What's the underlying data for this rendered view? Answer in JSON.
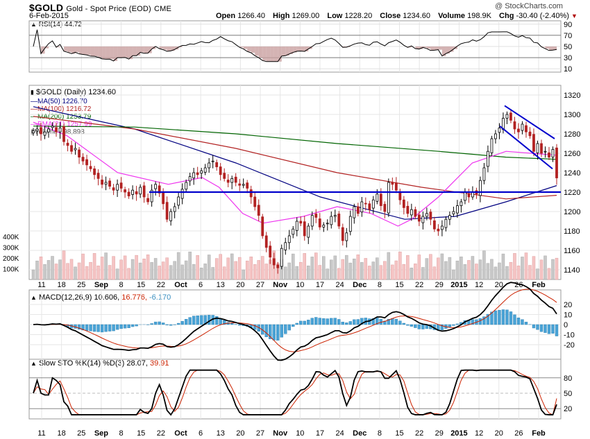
{
  "header": {
    "symbol": "$GOLD",
    "name": "Gold - Spot Price (EOD)",
    "exchange": "CME",
    "date": "6-Feb-2015",
    "copyright": "@ StockCharts.com",
    "open_label": "Open",
    "open": "1266.40",
    "high_label": "High",
    "high": "1269.00",
    "low_label": "Low",
    "low": "1228.20",
    "close_label": "Close",
    "close": "1234.60",
    "volume_label": "Volume",
    "volume": "198.9K",
    "chg_label": "Chg",
    "chg": "-30.40 (-2.40%)",
    "chg_arrow": "▼"
  },
  "colors": {
    "ma50": "#000080",
    "ma100": "#b22222",
    "ma200": "#006400",
    "ema21": "#ee33ee",
    "up_candle": "#000000",
    "down_candle": "#b22222",
    "vol_up": "#c8c8c8",
    "vol_down": "#f5c4c4",
    "macd_hist": "#4aa3d6",
    "macd_line": "#000000",
    "macd_signal": "#cc2200",
    "sto_k": "#000000",
    "sto_d": "#cc2200",
    "trendline": "#0000cc"
  },
  "rsi_panel": {
    "label": "RSI(14) 44.72",
    "levels": [
      90,
      70,
      50,
      30,
      10
    ]
  },
  "price_panel": {
    "title": "$GOLD (Daily) 1234.60",
    "legend": [
      {
        "text": "MA(50) 1226.70",
        "color": "#000080"
      },
      {
        "text": "MA(100) 1216.72",
        "color": "#b22222"
      },
      {
        "text": "MA(200) 1253.79",
        "color": "#006400"
      },
      {
        "text": "EMA(21) 1257.99",
        "color": "#ee33ee"
      },
      {
        "text": "Volume 198,898",
        "color": "#888888"
      }
    ],
    "y_ticks": [
      1320,
      1300,
      1280,
      1260,
      1240,
      1220,
      1200,
      1180,
      1160,
      1140
    ],
    "volume_ticks": [
      "400K",
      "300K",
      "200K",
      "100K"
    ]
  },
  "macd_panel": {
    "label_name": "MACD(12,26,9)",
    "macd": "10.606,",
    "signal": "16.776,",
    "hist": "-6.170",
    "y_ticks": [
      20,
      10,
      0,
      -10,
      -20
    ]
  },
  "sto_panel": {
    "label_name": "Slow STO %K(14) %D(3)",
    "k": "28.07,",
    "d": "39.91",
    "y_ticks": [
      80,
      50,
      20
    ]
  },
  "x_axis": {
    "labels": [
      "11",
      "18",
      "25",
      "Sep",
      "8",
      "15",
      "22",
      "Oct",
      "6",
      "13",
      "20",
      "27",
      "Nov",
      "10",
      "17",
      "24",
      "Dec",
      "8",
      "15",
      "22",
      "29",
      "2015",
      "12",
      "20",
      "26",
      "Feb"
    ],
    "bold": [
      "Sep",
      "Oct",
      "Nov",
      "Dec",
      "2015",
      "Feb"
    ]
  },
  "chart_data": {
    "type": "line",
    "title": "$GOLD (Daily) 1234.60",
    "period": "mid-Aug 2014 to 6-Feb-2015, daily candlesticks with moving averages, volume, RSI, MACD and Slow Stochastic panels",
    "ylim": [
      1130,
      1330
    ],
    "close": [
      1283,
      1285,
      1280,
      1282,
      1285,
      1288,
      1282,
      1286,
      1272,
      1268,
      1262,
      1265,
      1256,
      1252,
      1248,
      1244,
      1238,
      1234,
      1228,
      1230,
      1226,
      1222,
      1228,
      1224,
      1220,
      1216,
      1222,
      1218,
      1225,
      1215,
      1210,
      1222,
      1228,
      1219,
      1208,
      1192,
      1200,
      1205,
      1215,
      1223,
      1230,
      1236,
      1240,
      1238,
      1242,
      1245,
      1250,
      1252,
      1246,
      1238,
      1234,
      1230,
      1234,
      1230,
      1227,
      1228,
      1224,
      1215,
      1205,
      1196,
      1175,
      1163,
      1153,
      1145,
      1142,
      1162,
      1168,
      1175,
      1182,
      1190,
      1188,
      1175,
      1185,
      1196,
      1194,
      1184,
      1186,
      1188,
      1195,
      1196,
      1185,
      1170,
      1178,
      1195,
      1205,
      1198,
      1210,
      1208,
      1202,
      1212,
      1218,
      1206,
      1200,
      1230,
      1228,
      1222,
      1212,
      1204,
      1198,
      1202,
      1195,
      1190,
      1195,
      1198,
      1192,
      1182,
      1180,
      1185,
      1192,
      1196,
      1200,
      1206,
      1210,
      1220,
      1215,
      1220,
      1218,
      1232,
      1245,
      1262,
      1275,
      1280,
      1286,
      1296,
      1300,
      1294,
      1285,
      1282,
      1290,
      1282,
      1278,
      1262,
      1270,
      1260,
      1262,
      1256,
      1264,
      1234.6
    ],
    "series": [
      {
        "name": "MA(50)",
        "last": 1226.7,
        "values": [
          [
            0,
            1308
          ],
          [
            30,
            1285
          ],
          [
            60,
            1250
          ],
          [
            85,
            1215
          ],
          [
            110,
            1192
          ],
          [
            125,
            1195
          ],
          [
            140,
            1210
          ],
          [
            155,
            1226.7
          ]
        ]
      },
      {
        "name": "MA(100)",
        "last": 1216.72,
        "values": [
          [
            0,
            1298
          ],
          [
            30,
            1285
          ],
          [
            60,
            1265
          ],
          [
            90,
            1240
          ],
          [
            115,
            1225
          ],
          [
            140,
            1213
          ],
          [
            155,
            1216.72
          ]
        ]
      },
      {
        "name": "MA(200)",
        "last": 1253.79,
        "values": [
          [
            0,
            1288
          ],
          [
            30,
            1287
          ],
          [
            60,
            1280
          ],
          [
            90,
            1270
          ],
          [
            120,
            1262
          ],
          [
            140,
            1256
          ],
          [
            155,
            1253.79
          ]
        ]
      },
      {
        "name": "EMA(21)",
        "last": 1257.99,
        "values": [
          [
            0,
            1292
          ],
          [
            10,
            1278
          ],
          [
            25,
            1240
          ],
          [
            40,
            1228
          ],
          [
            50,
            1235
          ],
          [
            55,
            1225
          ],
          [
            62,
            1198
          ],
          [
            68,
            1188
          ],
          [
            80,
            1195
          ],
          [
            90,
            1205
          ],
          [
            100,
            1198
          ],
          [
            108,
            1185
          ],
          [
            112,
            1192
          ],
          [
            120,
            1215
          ],
          [
            130,
            1250
          ],
          [
            140,
            1262
          ],
          [
            155,
            1257.99
          ]
        ]
      }
    ],
    "horizontal_support": 1220,
    "annotations": [
      "Blue horizontal support line near 1220",
      "Descending blue channel from ~1308 to ~1258 in late Jan – early Feb 2015"
    ],
    "rsi": {
      "label": "RSI(14)",
      "last": 44.72,
      "range": [
        10,
        90
      ]
    },
    "macd": {
      "label": "MACD(12,26,9)",
      "macd": 10.606,
      "signal": 16.776,
      "histogram": -6.17
    },
    "slow_sto": {
      "label": "Slow STO %K(14) %D(3)",
      "k": 28.07,
      "d": 39.91,
      "range": [
        0,
        100
      ]
    },
    "volume": {
      "last": 198898,
      "ticks": [
        "100K",
        "200K",
        "300K",
        "400K"
      ]
    }
  }
}
